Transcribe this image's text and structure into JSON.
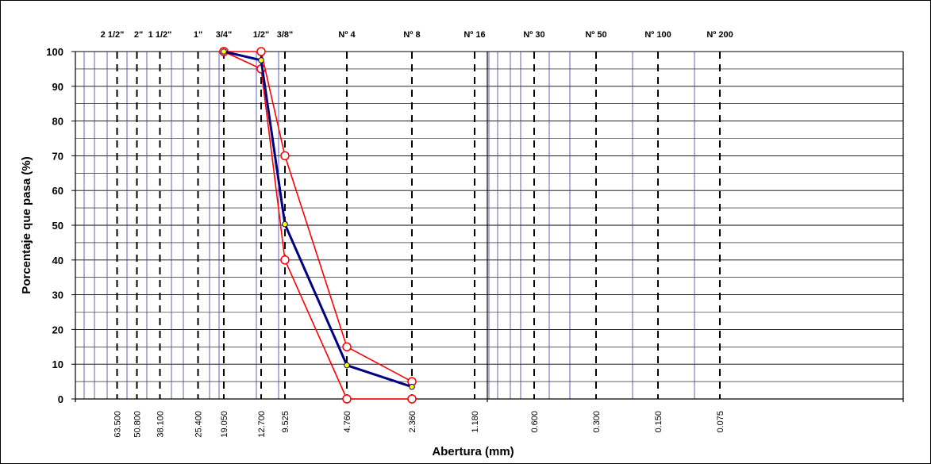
{
  "chart_data": {
    "type": "line",
    "xlabel": "Abertura (mm)",
    "ylabel": "Porcentaje que pasa (%)",
    "x_scale": "log",
    "x_reversed": true,
    "ylim": [
      0,
      100
    ],
    "yticks": [
      0,
      10,
      20,
      30,
      40,
      50,
      60,
      70,
      80,
      90,
      100
    ],
    "sieves": [
      {
        "name": "2 1/2\"",
        "mm": "63.500",
        "value": 63.5
      },
      {
        "name": "2\"",
        "mm": "50.800",
        "value": 50.8
      },
      {
        "name": "1 1/2\"",
        "mm": "38.100",
        "value": 38.1
      },
      {
        "name": "1\"",
        "mm": "25.400",
        "value": 25.4
      },
      {
        "name": "3/4\"",
        "mm": "19.050",
        "value": 19.05
      },
      {
        "name": "1/2\"",
        "mm": "12.700",
        "value": 12.7
      },
      {
        "name": "3/8\"",
        "mm": "9.525",
        "value": 9.525
      },
      {
        "name": "Nº 4",
        "mm": "4.760",
        "value": 4.76
      },
      {
        "name": "Nº 8",
        "mm": "2.360",
        "value": 2.36
      },
      {
        "name": "Nº 16",
        "mm": "1.180",
        "value": 1.18
      },
      {
        "name": "Nº 30",
        "mm": "0.600",
        "value": 0.6
      },
      {
        "name": "Nº 50",
        "mm": "0.300",
        "value": 0.3
      },
      {
        "name": "Nº 100",
        "mm": "0.150",
        "value": 0.15
      },
      {
        "name": "Nº 200",
        "mm": "0.075",
        "value": 0.075
      }
    ],
    "series": [
      {
        "role": "gradation",
        "color": "#000080",
        "marker": "#ffff00",
        "x": [
          19.05,
          12.7,
          9.525,
          4.76,
          2.36
        ],
        "y": [
          100,
          97.5,
          50.3,
          9.7,
          3.5
        ]
      },
      {
        "role": "upper-limit",
        "color": "#ff0000",
        "marker": "#ffffff",
        "x": [
          19.05,
          12.7,
          9.525,
          4.76,
          2.36
        ],
        "y": [
          100,
          100,
          70,
          15,
          5
        ]
      },
      {
        "role": "lower-limit",
        "color": "#ff0000",
        "marker": "#ffffff",
        "x": [
          19.05,
          12.7,
          9.525,
          4.76,
          2.36
        ],
        "y": [
          100,
          95,
          40,
          0,
          0
        ]
      }
    ]
  }
}
